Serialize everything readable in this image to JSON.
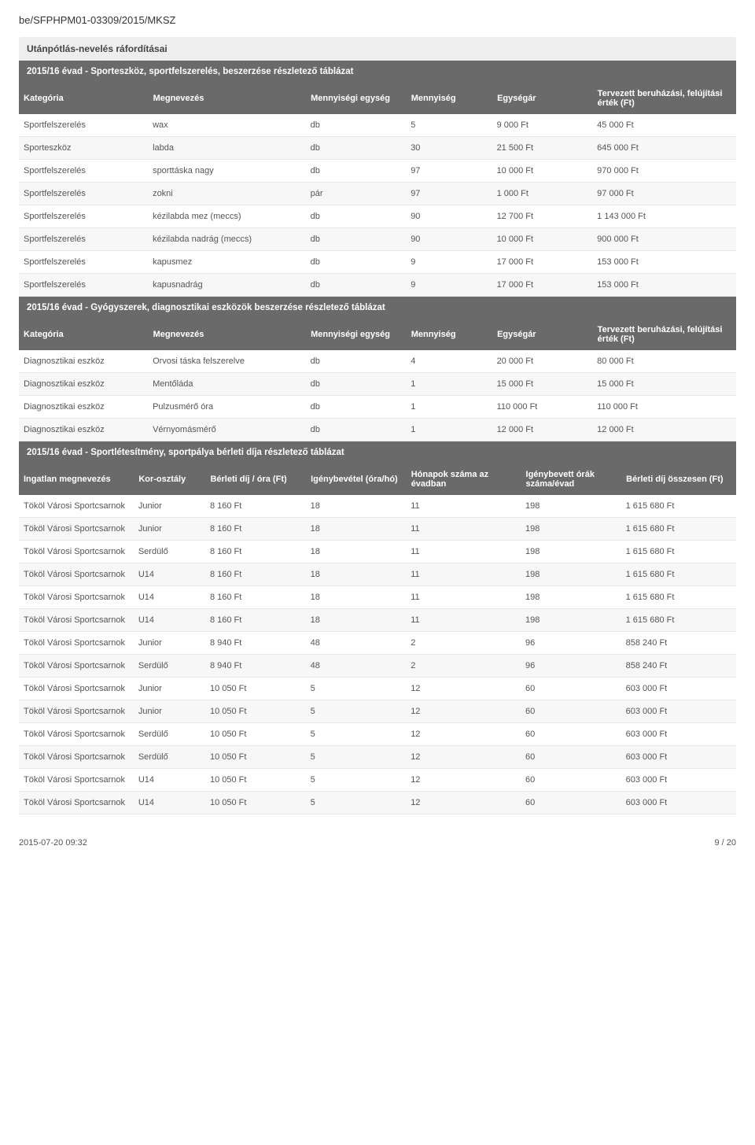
{
  "doc_id": "be/SFPHPM01-03309/2015/MKSZ",
  "section_title": "Utánpótlás-nevelés ráfordításai",
  "table1": {
    "banner": "2015/16 évad - Sporteszköz, sportfelszerelés, beszerzése részletező táblázat",
    "headers": [
      "Kategória",
      "Megnevezés",
      "Mennyiségi egység",
      "Mennyiség",
      "Egységár",
      "Tervezett beruházási, felújítási érték (Ft)"
    ],
    "col_widths": [
      "18%",
      "22%",
      "14%",
      "12%",
      "14%",
      "20%"
    ],
    "rows": [
      [
        "Sportfelszerelés",
        "wax",
        "db",
        "5",
        "9 000 Ft",
        "45 000 Ft"
      ],
      [
        "Sporteszköz",
        "labda",
        "db",
        "30",
        "21 500 Ft",
        "645 000 Ft"
      ],
      [
        "Sportfelszerelés",
        "sporttáska nagy",
        "db",
        "97",
        "10 000 Ft",
        "970 000 Ft"
      ],
      [
        "Sportfelszerelés",
        "zokni",
        "pár",
        "97",
        "1 000 Ft",
        "97 000 Ft"
      ],
      [
        "Sportfelszerelés",
        "kézilabda mez (meccs)",
        "db",
        "90",
        "12 700 Ft",
        "1 143 000 Ft"
      ],
      [
        "Sportfelszerelés",
        "kézilabda nadrág (meccs)",
        "db",
        "90",
        "10 000 Ft",
        "900 000 Ft"
      ],
      [
        "Sportfelszerelés",
        "kapusmez",
        "db",
        "9",
        "17 000 Ft",
        "153 000 Ft"
      ],
      [
        "Sportfelszerelés",
        "kapusnadrág",
        "db",
        "9",
        "17 000 Ft",
        "153 000 Ft"
      ]
    ]
  },
  "table2": {
    "banner": "2015/16 évad - Gyógyszerek, diagnosztikai eszközök beszerzése részletező táblázat",
    "headers": [
      "Kategória",
      "Megnevezés",
      "Mennyiségi egység",
      "Mennyiség",
      "Egységár",
      "Tervezett beruházási, felújítási érték (Ft)"
    ],
    "col_widths": [
      "18%",
      "22%",
      "14%",
      "12%",
      "14%",
      "20%"
    ],
    "rows": [
      [
        "Diagnosztikai eszköz",
        "Orvosi táska felszerelve",
        "db",
        "4",
        "20 000 Ft",
        "80 000 Ft"
      ],
      [
        "Diagnosztikai eszköz",
        "Mentőláda",
        "db",
        "1",
        "15 000 Ft",
        "15 000 Ft"
      ],
      [
        "Diagnosztikai eszköz",
        "Pulzusmérő óra",
        "db",
        "1",
        "110 000 Ft",
        "110 000 Ft"
      ],
      [
        "Diagnosztikai eszköz",
        "Vérnyomásmérő",
        "db",
        "1",
        "12 000 Ft",
        "12 000 Ft"
      ]
    ]
  },
  "table3": {
    "banner": "2015/16 évad - Sportlétesítmény, sportpálya bérleti díja részletező táblázat",
    "headers": [
      "Ingatlan megnevezés",
      "Kor-osztály",
      "Bérleti díj / óra (Ft)",
      "Igénybevétel (óra/hó)",
      "Hónapok száma az évadban",
      "Igénybevett órák száma/évad",
      "Bérleti díj összesen (Ft)"
    ],
    "col_widths": [
      "16%",
      "10%",
      "14%",
      "14%",
      "16%",
      "14%",
      "16%"
    ],
    "rows": [
      [
        "Tököl Városi Sportcsarnok",
        "Junior",
        "8 160 Ft",
        "18",
        "11",
        "198",
        "1 615 680 Ft"
      ],
      [
        "Tököl Városi Sportcsarnok",
        "Junior",
        "8 160 Ft",
        "18",
        "11",
        "198",
        "1 615 680 Ft"
      ],
      [
        "Tököl Városi Sportcsarnok",
        "Serdülő",
        "8 160 Ft",
        "18",
        "11",
        "198",
        "1 615 680 Ft"
      ],
      [
        "Tököl Városi Sportcsarnok",
        "U14",
        "8 160 Ft",
        "18",
        "11",
        "198",
        "1 615 680 Ft"
      ],
      [
        "Tököl Városi Sportcsarnok",
        "U14",
        "8 160 Ft",
        "18",
        "11",
        "198",
        "1 615 680 Ft"
      ],
      [
        "Tököl Városi Sportcsarnok",
        "U14",
        "8 160 Ft",
        "18",
        "11",
        "198",
        "1 615 680 Ft"
      ],
      [
        "Tököl Városi Sportcsarnok",
        "Junior",
        "8 940 Ft",
        "48",
        "2",
        "96",
        "858 240 Ft"
      ],
      [
        "Tököl Városi Sportcsarnok",
        "Serdülő",
        "8 940 Ft",
        "48",
        "2",
        "96",
        "858 240 Ft"
      ],
      [
        "Tököl Városi Sportcsarnok",
        "Junior",
        "10 050 Ft",
        "5",
        "12",
        "60",
        "603 000 Ft"
      ],
      [
        "Tököl Városi Sportcsarnok",
        "Junior",
        "10 050 Ft",
        "5",
        "12",
        "60",
        "603 000 Ft"
      ],
      [
        "Tököl Városi Sportcsarnok",
        "Serdülő",
        "10 050 Ft",
        "5",
        "12",
        "60",
        "603 000 Ft"
      ],
      [
        "Tököl Városi Sportcsarnok",
        "Serdülő",
        "10 050 Ft",
        "5",
        "12",
        "60",
        "603 000 Ft"
      ],
      [
        "Tököl Városi Sportcsarnok",
        "U14",
        "10 050 Ft",
        "5",
        "12",
        "60",
        "603 000 Ft"
      ],
      [
        "Tököl Városi Sportcsarnok",
        "U14",
        "10 050 Ft",
        "5",
        "12",
        "60",
        "603 000 Ft"
      ]
    ]
  },
  "footer": {
    "left": "2015-07-20 09:32",
    "right": "9 / 20"
  },
  "style": {
    "header_bg": "#6a6a6a",
    "header_color": "#ffffff",
    "section_bg": "#eeeeee",
    "body_bg": "#ffffff",
    "text_color": "#333333",
    "row_alt_bg": "#f7f7f7",
    "border_color": "#e8e8e8",
    "font_size_body": 11,
    "font_size_title": 12
  }
}
